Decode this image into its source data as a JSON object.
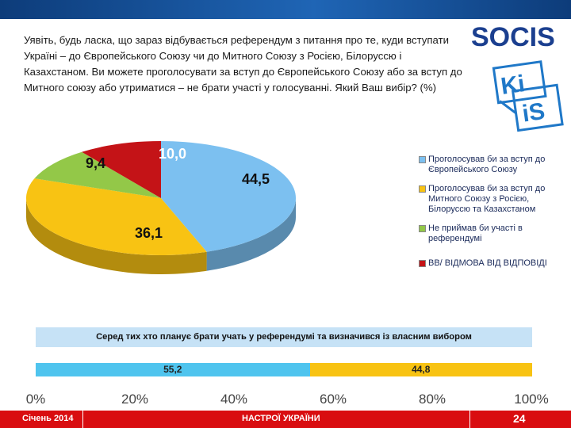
{
  "question": "Уявіть, будь ласка, що зараз відбувається референдум з питання про те, куди вступати Україні – до Європейського Союзу чи до Митного Союзу з Росією, Білоруссю і Казахстаном. Ви можете проголосувати за вступ до Європейського Союзу або за вступ до Митного союзу або утриматися – не брати участі у голосуванні. Який Ваш вибір? (%)",
  "logos": {
    "socis": "SOCIS",
    "kiis_top": "Ki",
    "kiis_bottom": "iS"
  },
  "chart_data": [
    {
      "type": "pie",
      "categories": [
        "Проголосував би за вступ до Європейського Союзу",
        "Проголосував би за вступ до Митного Союзу з Росією, Білоруссю та Казахстаном",
        "Не приймав би участі в референдумі",
        "ВВ/ ВІДМОВА ВІД ВІДПОВІДІ"
      ],
      "values": [
        44.5,
        36.1,
        9.4,
        10.0
      ],
      "labels": [
        "44,5",
        "36,1",
        "9,4",
        "10,0"
      ],
      "colors": [
        "#7cc0f0",
        "#f8c313",
        "#93c848",
        "#c41317"
      ],
      "legend_position": "right"
    },
    {
      "type": "bar",
      "stacked": true,
      "orientation": "horizontal",
      "title": "Серед тих хто планує брати учать у референдумі та визначився із власним вибором",
      "values": [
        55.2,
        44.8
      ],
      "labels": [
        "55,2",
        "44,8"
      ],
      "colors": [
        "#4fc4ee",
        "#f8c313"
      ],
      "xlim": [
        0,
        100
      ],
      "xticks": [
        "0%",
        "20%",
        "40%",
        "60%",
        "80%",
        "100%"
      ]
    }
  ],
  "footer": {
    "date": "Січень 2014",
    "title": "НАСТРОЇ УКРАЇНИ",
    "page": "24"
  }
}
